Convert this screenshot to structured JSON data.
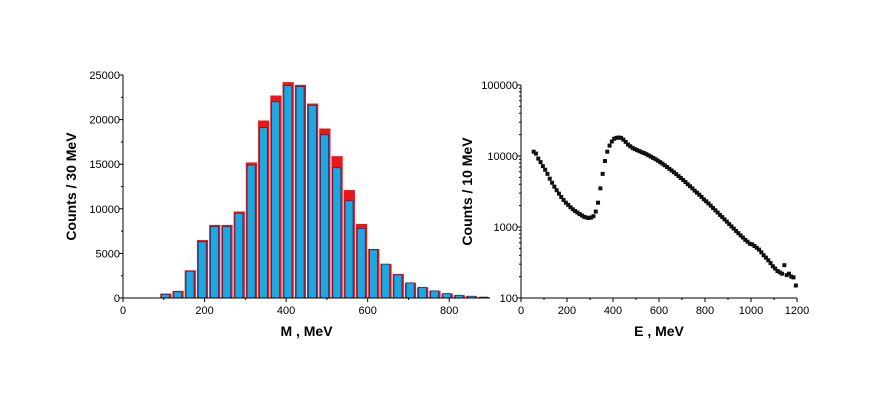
{
  "chart_data": [
    {
      "type": "bar",
      "xlabel": "M  ,  MeV",
      "ylabel": "Counts  /  30 MeV",
      "xlim": [
        0,
        900
      ],
      "ylim": [
        0,
        25000
      ],
      "xticks": [
        0,
        200,
        400,
        600,
        800
      ],
      "yticks": [
        0,
        5000,
        10000,
        15000,
        20000,
        25000
      ],
      "bin_width": 30,
      "bin_centers": [
        105,
        135,
        165,
        195,
        225,
        255,
        285,
        315,
        345,
        375,
        405,
        435,
        465,
        495,
        525,
        555,
        585,
        615,
        645,
        675,
        705,
        735,
        765,
        795,
        825,
        855,
        885
      ],
      "series": [
        {
          "color": "#e8181a",
          "values": [
            500,
            800,
            3100,
            6500,
            8200,
            8200,
            9700,
            15200,
            19900,
            22700,
            24200,
            23900,
            21800,
            19000,
            15900,
            12100,
            8300,
            5500,
            3800,
            2700,
            1700,
            1200,
            800,
            500,
            300,
            200,
            100
          ]
        },
        {
          "color": "#1ea8e0",
          "values": [
            400,
            700,
            3000,
            6300,
            8000,
            8000,
            9500,
            14900,
            19100,
            22000,
            23800,
            23700,
            21600,
            18300,
            14600,
            10900,
            7800,
            5400,
            3800,
            2600,
            1700,
            1200,
            800,
            500,
            300,
            200,
            100
          ]
        }
      ]
    },
    {
      "type": "scatter",
      "xlabel": "E  ,  MeV",
      "ylabel": "Counts  /  10 MeV",
      "xlim": [
        0,
        1200
      ],
      "ylim": [
        100,
        100000
      ],
      "yscale": "log",
      "xticks": [
        0,
        200,
        400,
        600,
        800,
        1000,
        1200
      ],
      "ytick_labels": [
        "100",
        "1000",
        "10000",
        "100000"
      ],
      "yticks": [
        100,
        1000,
        10000,
        100000
      ],
      "marker_color": "#111111",
      "points": [
        [
          55,
          11500
        ],
        [
          65,
          10800
        ],
        [
          75,
          9200
        ],
        [
          85,
          8200
        ],
        [
          95,
          7200
        ],
        [
          105,
          6400
        ],
        [
          115,
          5600
        ],
        [
          125,
          4800
        ],
        [
          135,
          4200
        ],
        [
          145,
          3700
        ],
        [
          155,
          3300
        ],
        [
          165,
          2950
        ],
        [
          175,
          2650
        ],
        [
          185,
          2400
        ],
        [
          195,
          2200
        ],
        [
          205,
          2050
        ],
        [
          215,
          1900
        ],
        [
          225,
          1780
        ],
        [
          235,
          1680
        ],
        [
          245,
          1600
        ],
        [
          255,
          1520
        ],
        [
          265,
          1450
        ],
        [
          275,
          1390
        ],
        [
          285,
          1360
        ],
        [
          295,
          1340
        ],
        [
          305,
          1360
        ],
        [
          315,
          1420
        ],
        [
          325,
          1650
        ],
        [
          335,
          2200
        ],
        [
          345,
          3500
        ],
        [
          355,
          5600
        ],
        [
          365,
          8500
        ],
        [
          375,
          11500
        ],
        [
          385,
          14000
        ],
        [
          395,
          16000
        ],
        [
          405,
          17500
        ],
        [
          415,
          18000
        ],
        [
          425,
          18200
        ],
        [
          435,
          18000
        ],
        [
          445,
          17000
        ],
        [
          455,
          15800
        ],
        [
          465,
          14500
        ],
        [
          475,
          13700
        ],
        [
          485,
          13000
        ],
        [
          495,
          12500
        ],
        [
          505,
          12100
        ],
        [
          515,
          11700
        ],
        [
          525,
          11300
        ],
        [
          535,
          11000
        ],
        [
          545,
          10600
        ],
        [
          555,
          10200
        ],
        [
          565,
          9800
        ],
        [
          575,
          9400
        ],
        [
          585,
          9000
        ],
        [
          595,
          8600
        ],
        [
          605,
          8200
        ],
        [
          615,
          7800
        ],
        [
          625,
          7400
        ],
        [
          635,
          7000
        ],
        [
          645,
          6600
        ],
        [
          655,
          6250
        ],
        [
          665,
          5900
        ],
        [
          675,
          5550
        ],
        [
          685,
          5200
        ],
        [
          695,
          4900
        ],
        [
          705,
          4600
        ],
        [
          715,
          4300
        ],
        [
          725,
          4000
        ],
        [
          735,
          3750
        ],
        [
          745,
          3500
        ],
        [
          755,
          3250
        ],
        [
          765,
          3050
        ],
        [
          775,
          2850
        ],
        [
          785,
          2650
        ],
        [
          795,
          2450
        ],
        [
          805,
          2300
        ],
        [
          815,
          2150
        ],
        [
          825,
          2000
        ],
        [
          835,
          1850
        ],
        [
          845,
          1720
        ],
        [
          855,
          1600
        ],
        [
          865,
          1480
        ],
        [
          875,
          1380
        ],
        [
          885,
          1280
        ],
        [
          895,
          1190
        ],
        [
          905,
          1100
        ],
        [
          915,
          1020
        ],
        [
          925,
          950
        ],
        [
          935,
          880
        ],
        [
          945,
          820
        ],
        [
          955,
          760
        ],
        [
          965,
          710
        ],
        [
          975,
          660
        ],
        [
          985,
          620
        ],
        [
          995,
          580
        ],
        [
          1005,
          570
        ],
        [
          1015,
          540
        ],
        [
          1025,
          510
        ],
        [
          1035,
          480
        ],
        [
          1045,
          440
        ],
        [
          1055,
          400
        ],
        [
          1065,
          370
        ],
        [
          1075,
          340
        ],
        [
          1085,
          310
        ],
        [
          1095,
          280
        ],
        [
          1105,
          260
        ],
        [
          1115,
          240
        ],
        [
          1125,
          230
        ],
        [
          1135,
          220
        ],
        [
          1145,
          290
        ],
        [
          1155,
          210
        ],
        [
          1165,
          220
        ],
        [
          1175,
          200
        ],
        [
          1185,
          195
        ],
        [
          1195,
          150
        ]
      ]
    }
  ]
}
